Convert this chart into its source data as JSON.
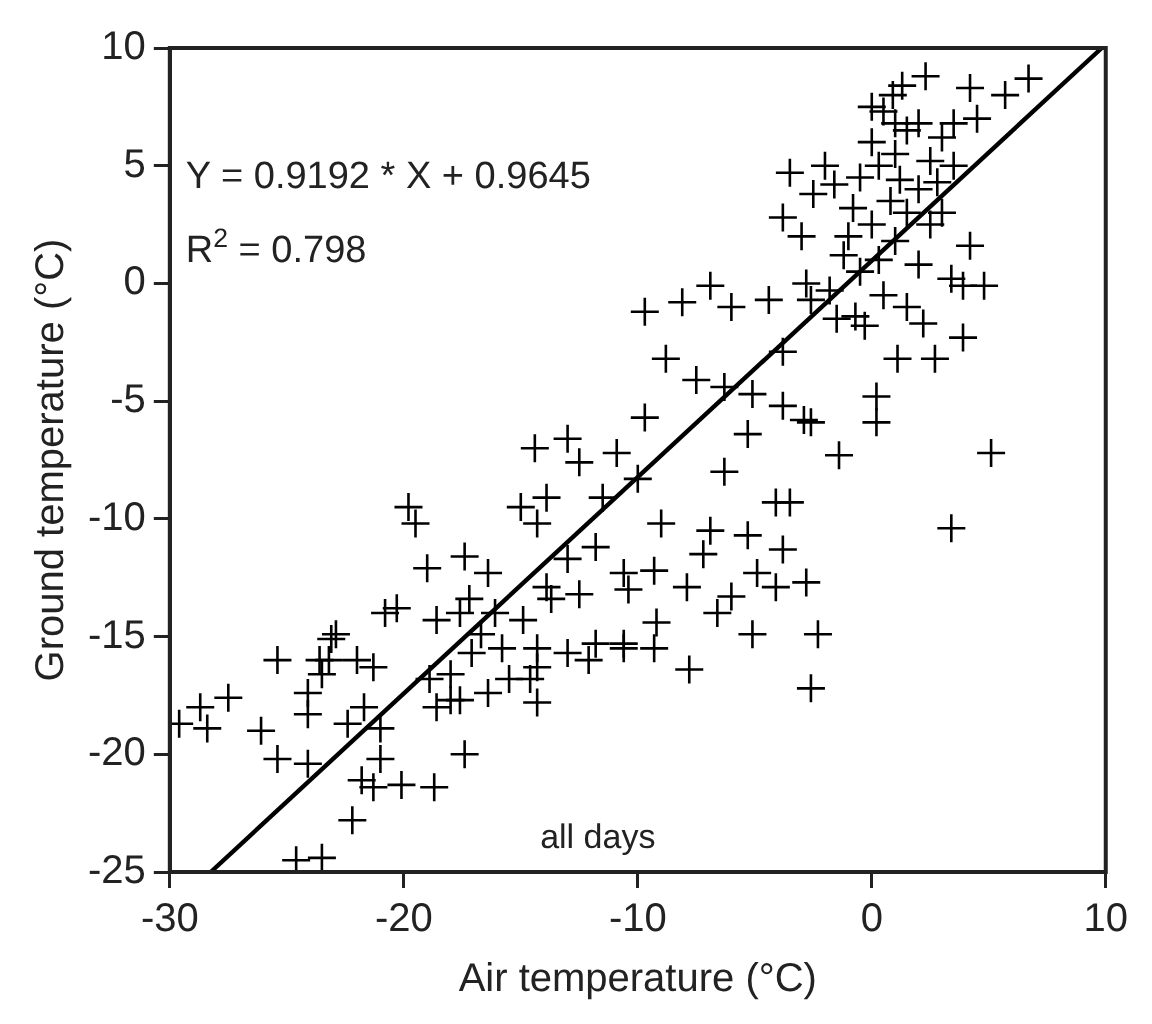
{
  "chart_data": {
    "type": "scatter",
    "xlabel": "Air temperature (°C)",
    "ylabel": "Ground temperature (°C)",
    "xlim": [
      -30,
      10
    ],
    "ylim": [
      -25,
      10
    ],
    "xticks": [
      -30,
      -20,
      -10,
      0,
      10
    ],
    "yticks": [
      -25,
      -20,
      -15,
      -10,
      -5,
      0,
      5,
      10
    ],
    "grid": false,
    "legend": false,
    "annotations": [
      "Y = 0.9192 * X + 0.9645",
      "R$^{2}$ = 0.798",
      "all days"
    ],
    "series": [
      {
        "color": "#000000",
        "marker": "cross",
        "x": [
          6.7,
          5.7,
          2.3,
          1.3,
          4.2,
          -3.5,
          -3.8,
          -9.7,
          -8.1,
          -6.9,
          -6,
          -4.4,
          -2.6,
          -0.7,
          -8.8,
          -7.5,
          -6.3,
          -5.1,
          -3.8,
          -3.8,
          -2.9,
          0.2,
          0.2,
          -9.7,
          -5.3,
          1.1,
          2.7,
          3.9,
          2.2,
          4.8,
          4.2,
          3,
          3.9,
          5.1,
          3.4,
          -1.4,
          -2.6,
          -6.3,
          -4.1,
          -3.5,
          -6.9,
          -5.3,
          -3.8,
          -7.2,
          -2.8,
          -4.1,
          -4.9,
          -6,
          -6.6,
          -5.1,
          -2.3,
          -7.8,
          -2.6,
          -9.2,
          -9.3,
          -10.6,
          -7.9,
          -9.3,
          -10.4,
          -9,
          -10,
          -10.9,
          -14.4,
          -13,
          -12.5,
          -13.9,
          -15,
          -14.3,
          -11.5,
          -19.8,
          -19.5,
          -19,
          -17.4,
          -16.4,
          -20.3,
          -17.6,
          -16.1,
          -14.9,
          -13.9,
          -13.7,
          -12.5,
          -11.8,
          -13,
          -10.6,
          -10.6,
          -12.1,
          -14.3,
          -14.3,
          -15.8,
          -16.7,
          -17.1,
          -18,
          -18,
          -18.9,
          -18.6,
          -20.8,
          -21.3,
          -21.7,
          -22.9,
          -23.1,
          -23.6,
          -23.5,
          -24.1,
          -25.4,
          -26.1,
          -25.4,
          -24.1,
          -22.4,
          -21,
          -21,
          -17.4,
          -21.8,
          -21.3,
          -20.1,
          -18.7,
          -22.2,
          -24.6,
          -23.5,
          -27.5,
          -28.7,
          -28.4,
          -29.6,
          -23.2,
          -24.1,
          -22,
          -18.6,
          -17.6,
          -16.4,
          -15.5,
          -17.2,
          -14.3,
          -13,
          -11.8,
          -14.6,
          0.5,
          1,
          1.5,
          2,
          3,
          0,
          1,
          2.5,
          3.5,
          0.3,
          1.2,
          -0.5,
          2,
          0.8,
          -0.8,
          1.5,
          0,
          2.5,
          -1,
          1,
          0.3,
          -0.5,
          2,
          3.4,
          -1.8,
          -1.2,
          0.5,
          -0.3,
          1.5,
          -2.8,
          -1.5,
          3.5,
          4.5,
          -2.5,
          -2,
          -1.6,
          -3,
          2.8,
          0.9,
          0
        ],
        "values": [
          8.7,
          8,
          8.8,
          8.4,
          8.3,
          4.7,
          2.8,
          -1.2,
          -0.8,
          -0.1,
          -1,
          -0.7,
          -0.7,
          -1.4,
          -3.2,
          -4.1,
          -4.4,
          -4.7,
          -2.9,
          -5.2,
          -5.8,
          -4.8,
          -5.9,
          -5.7,
          -6.4,
          -3.2,
          -3.2,
          -2.3,
          -1.7,
          -0.1,
          1.6,
          3,
          -0.1,
          -7.2,
          -10.4,
          -7.3,
          -5.9,
          -8,
          -9.3,
          -9.3,
          -10.5,
          -10.7,
          -11.3,
          -11.5,
          -12.7,
          -12.9,
          -12.3,
          -13.3,
          -14,
          -14.9,
          -14.9,
          -16.4,
          -17.2,
          -14.4,
          -15.5,
          -15.5,
          -12.9,
          -12.2,
          -13,
          -10.2,
          -8.3,
          -7.2,
          -7,
          -6.6,
          -7.6,
          -9.1,
          -9.5,
          -10.2,
          -9.1,
          -9.5,
          -10.2,
          -12.1,
          -11.6,
          -12.3,
          -13.8,
          -14,
          -14,
          -14.3,
          -12.9,
          -13.4,
          -13.2,
          -11.2,
          -11.7,
          -12.3,
          -15.3,
          -16,
          -15.5,
          -17.8,
          -15.5,
          -14.9,
          -15.7,
          -16.6,
          -17.7,
          -16.8,
          -14.3,
          -14,
          -16.3,
          -18,
          -14.9,
          -15.1,
          -16,
          -16.6,
          -18.3,
          -16,
          -19,
          -20.2,
          -20.4,
          -18.7,
          -18.9,
          -20.2,
          -20,
          -21.1,
          -21.4,
          -21.3,
          -21.4,
          -22.8,
          -24.5,
          -24.4,
          -17.6,
          -18,
          -18.9,
          -18.7,
          -16,
          -17.4,
          -16,
          -18,
          -17.7,
          -17.4,
          -16.8,
          -13.4,
          -16.3,
          -15.7,
          -15.3,
          -16.8,
          7.3,
          6.8,
          6.5,
          6.8,
          6.2,
          6,
          5.5,
          5.2,
          5,
          5,
          4.4,
          4.5,
          4,
          3.5,
          3.2,
          3,
          2.5,
          2.5,
          2,
          1.8,
          1,
          0.5,
          0.8,
          0.2,
          -0.3,
          1.2,
          -0.5,
          -1.8,
          -1,
          0,
          -1.5,
          6.8,
          7,
          3.8,
          5,
          4.2,
          2,
          4.3,
          8,
          7.5
        ]
      },
      {
        "type": "line",
        "marker": "none",
        "color": "#000000",
        "x": [
          -28.25,
          9.83
        ],
        "values": [
          -25,
          10
        ]
      }
    ]
  }
}
